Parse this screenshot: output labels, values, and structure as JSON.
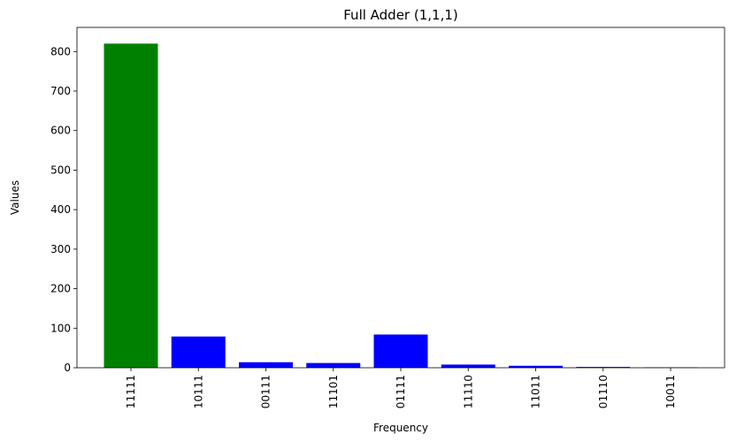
{
  "chart_data": {
    "type": "bar",
    "title": "Full Adder (1,1,1)",
    "xlabel": "Frequency",
    "ylabel": "Values",
    "categories": [
      "11111",
      "10111",
      "00111",
      "11101",
      "01111",
      "11110",
      "11011",
      "01110",
      "10011"
    ],
    "values": [
      820,
      79,
      14,
      12,
      84,
      8,
      5,
      2,
      1
    ],
    "bar_colors": [
      "#008000",
      "#0000ff",
      "#0000ff",
      "#0000ff",
      "#0000ff",
      "#0000ff",
      "#0000ff",
      "#0000ff",
      "#0000ff"
    ],
    "ylim": [
      0,
      861
    ],
    "yticks": [
      0,
      100,
      200,
      300,
      400,
      500,
      600,
      700,
      800
    ],
    "grid": false,
    "legend": "none"
  }
}
